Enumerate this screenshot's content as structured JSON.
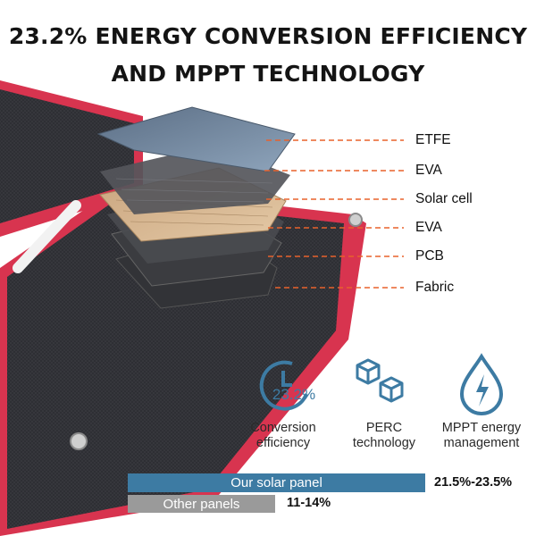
{
  "headline": {
    "line1": "23.2% ENERGY CONVERSION EFFICIENCY",
    "line2": "AND MPPT TECHNOLOGY"
  },
  "layers": [
    "ETFE",
    "EVA",
    "Solar cell",
    "EVA",
    "PCB",
    "Fabric"
  ],
  "features": [
    {
      "icon": "clock-percent-icon",
      "badge": "23.2%",
      "label_line1": "Conversion",
      "label_line2": "efficiency"
    },
    {
      "icon": "cubes-icon",
      "label_line1": "PERC",
      "label_line2": "technology"
    },
    {
      "icon": "energy-drop-icon",
      "label_line1": "MPPT energy",
      "label_line2": "management"
    }
  ],
  "comparison": {
    "ours_label": "Our solar panel",
    "ours_value": "21.5%-23.5%",
    "other_label": "Other panels",
    "other_value": "11-14%"
  },
  "colors": {
    "frame_red": "#d8344f",
    "fabric_dark": "#2b2c30",
    "leader_orange": "#e8622c",
    "accent_blue": "#3d7ba3",
    "bar_gray": "#9a9a9a"
  }
}
